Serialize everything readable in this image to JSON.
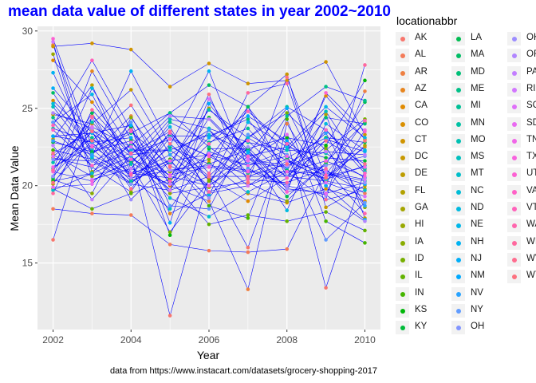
{
  "chart_data": {
    "type": "line",
    "title": "mean data value of different states in year 2002~2010",
    "title_color": "#0000ff",
    "xlabel": "Year",
    "ylabel": "Mean Data Value",
    "caption": "data from https://www.instacart.com/datasets/grocery-shopping-2017",
    "x": [
      2002,
      2003,
      2004,
      2005,
      2006,
      2007,
      2008,
      2009,
      2010
    ],
    "x_ticks": [
      "2002",
      "2004",
      "2006",
      "2008",
      "2010"
    ],
    "y_ticks": [
      "15",
      "20",
      "25",
      "30"
    ],
    "xlim": [
      2001.6,
      2010.4
    ],
    "ylim": [
      10.7,
      30.3
    ],
    "line_color": "#0000ff",
    "panel_background": "#ebebeb",
    "grid": true,
    "legend_title": "locationabbr",
    "legend_position": "right",
    "series": [
      {
        "name": "AK",
        "values": [
          16.5,
          24.5,
          22.0,
          11.6,
          20.6,
          16.0,
          23.0,
          13.4,
          21.0
        ]
      },
      {
        "name": "AL",
        "values": [
          18.5,
          18.2,
          18.1,
          16.2,
          15.8,
          15.7,
          15.9,
          21.0,
          19.5
        ]
      },
      {
        "name": "AR",
        "values": [
          29.1,
          22.0,
          24.5,
          20.0,
          19.0,
          13.3,
          24.0,
          20.0,
          26.1
        ]
      },
      {
        "name": "AZ",
        "values": [
          21.0,
          27.4,
          23.0,
          18.2,
          19.5,
          20.0,
          21.0,
          20.5,
          22.5
        ]
      },
      {
        "name": "CA",
        "values": [
          28.1,
          25.4,
          22.0,
          22.3,
          20.5,
          19.0,
          20.5,
          25.8,
          23.0
        ]
      },
      {
        "name": "CO",
        "values": [
          25.5,
          23.0,
          21.5,
          20.0,
          21.5,
          19.5,
          18.9,
          19.8,
          19.0
        ]
      },
      {
        "name": "CT",
        "values": [
          29.0,
          29.2,
          28.8,
          26.4,
          27.9,
          26.6,
          26.8,
          28.0,
          23.3
        ]
      },
      {
        "name": "DC",
        "values": [
          24.6,
          24.0,
          26.2,
          22.0,
          20.0,
          25.1,
          27.2,
          18.6,
          20.0
        ]
      },
      {
        "name": "DE",
        "values": [
          23.0,
          26.5,
          20.8,
          20.5,
          25.0,
          22.3,
          19.8,
          24.6,
          17.9
        ]
      },
      {
        "name": "FL",
        "values": [
          20.1,
          23.6,
          21.9,
          19.7,
          23.6,
          20.8,
          21.7,
          20.3,
          22.6
        ]
      },
      {
        "name": "GA",
        "values": [
          21.8,
          21.2,
          19.6,
          23.5,
          20.3,
          22.1,
          20.6,
          20.3,
          19.8
        ]
      },
      {
        "name": "HI",
        "values": [
          28.5,
          20.9,
          22.6,
          19.5,
          19.9,
          20.2,
          19.0,
          21.5,
          24.1
        ]
      },
      {
        "name": "IA",
        "values": [
          20.4,
          19.5,
          24.4,
          20.9,
          21.7,
          25.1,
          20.6,
          22.5,
          18.6
        ]
      },
      {
        "name": "ID",
        "values": [
          22.0,
          20.6,
          21.4,
          17.0,
          20.3,
          23.1,
          24.7,
          22.3,
          24.3
        ]
      },
      {
        "name": "IL",
        "values": [
          19.8,
          18.5,
          19.5,
          20.4,
          17.5,
          18.1,
          17.7,
          18.3,
          17.1
        ]
      },
      {
        "name": "IN",
        "values": [
          22.3,
          21.7,
          20.2,
          21.7,
          18.7,
          17.9,
          24.3,
          17.7,
          16.3
        ]
      },
      {
        "name": "KS",
        "values": [
          20.3,
          20.8,
          23.8,
          16.8,
          22.4,
          22.4,
          23.1,
          22.6,
          26.8
        ]
      },
      {
        "name": "KY",
        "values": [
          22.8,
          22.2,
          22.9,
          20.2,
          24.4,
          21.9,
          22.5,
          21.8,
          21.6
        ]
      },
      {
        "name": "LA",
        "values": [
          20.5,
          24.7,
          20.4,
          22.5,
          21.4,
          22.3,
          19.3,
          21.4,
          25.4
        ]
      },
      {
        "name": "MA",
        "values": [
          26.0,
          22.1,
          23.4,
          24.7,
          26.5,
          25.1,
          21.8,
          23.1,
          22.8
        ]
      },
      {
        "name": "MD",
        "values": [
          23.2,
          23.4,
          21.6,
          23.2,
          23.2,
          24.3,
          21.0,
          24.4,
          24.0
        ]
      },
      {
        "name": "ME",
        "values": [
          24.4,
          21.6,
          22.6,
          24.7,
          22.5,
          20.8,
          24.5,
          26.4,
          25.5
        ]
      },
      {
        "name": "MI",
        "values": [
          21.1,
          23.1,
          20.7,
          24.1,
          22.8,
          23.7,
          20.9,
          20.8,
          20.3
        ]
      },
      {
        "name": "MN",
        "values": [
          23.7,
          22.8,
          20.3,
          21.5,
          24.9,
          23.1,
          25.1,
          23.6,
          21.1
        ]
      },
      {
        "name": "MO",
        "values": [
          21.5,
          24.1,
          21.4,
          24.3,
          23.7,
          22.8,
          22.3,
          22.1,
          20.5
        ]
      },
      {
        "name": "MS",
        "values": [
          25.1,
          21.8,
          20.5,
          18.5,
          22.2,
          21.3,
          22.3,
          24.8,
          20.9
        ]
      },
      {
        "name": "MT",
        "values": [
          19.7,
          20.8,
          21.9,
          19.2,
          18.0,
          19.6,
          20.9,
          19.1,
          19.7
        ]
      },
      {
        "name": "NC",
        "values": [
          25.3,
          22.4,
          20.1,
          19.7,
          20.6,
          23.1,
          21.6,
          20.4,
          21.3
        ]
      },
      {
        "name": "ND",
        "values": [
          20.6,
          26.3,
          22.3,
          22.3,
          23.3,
          22.2,
          18.4,
          24.0,
          22.3
        ]
      },
      {
        "name": "NE",
        "values": [
          24.1,
          25.9,
          21.1,
          23.8,
          19.4,
          24.1,
          22.5,
          25.1,
          23.1
        ]
      },
      {
        "name": "NH",
        "values": [
          27.3,
          21.9,
          27.4,
          22.6,
          27.4,
          21.1,
          20.1,
          23.0,
          22.2
        ]
      },
      {
        "name": "NJ",
        "values": [
          26.3,
          23.4,
          23.9,
          17.6,
          25.3,
          22.1,
          25.0,
          20.0,
          17.8
        ]
      },
      {
        "name": "NM",
        "values": [
          23.2,
          22.8,
          23.1,
          20.6,
          23.1,
          24.5,
          22.9,
          20.8,
          20.1
        ]
      },
      {
        "name": "NV",
        "values": [
          22.9,
          22.0,
          20.7,
          22.0,
          23.6,
          21.5,
          21.2,
          23.4,
          18.7
        ]
      },
      {
        "name": "NY",
        "values": [
          24.1,
          21.2,
          24.1,
          18.7,
          18.5,
          23.3,
          22.0,
          16.5,
          18.9
        ]
      },
      {
        "name": "OH",
        "values": [
          21.7,
          21.6,
          20.1,
          23.1,
          21.9,
          20.6,
          20.6,
          21.3,
          21.9
        ]
      },
      {
        "name": "OK",
        "values": [
          20.6,
          23.5,
          19.1,
          21.6,
          19.2,
          22.5,
          19.8,
          19.5,
          20.2
        ]
      },
      {
        "name": "OR",
        "values": [
          24.7,
          23.7,
          20.5,
          21.0,
          21.3,
          21.0,
          20.0,
          19.4,
          17.7
        ]
      },
      {
        "name": "PA",
        "values": [
          22.6,
          19.1,
          22.0,
          24.5,
          24.3,
          21.7,
          21.3,
          22.2,
          22.0
        ]
      },
      {
        "name": "RI",
        "values": [
          29.3,
          20.4,
          21.1,
          20.1,
          22.1,
          20.0,
          21.6,
          20.9,
          20.4
        ]
      },
      {
        "name": "SC",
        "values": [
          21.9,
          23.8,
          22.5,
          19.7,
          25.6,
          21.8,
          19.6,
          20.2,
          19.3
        ]
      },
      {
        "name": "SD",
        "values": [
          19.9,
          20.1,
          22.8,
          20.6,
          20.0,
          21.6,
          23.3,
          19.5,
          23.6
        ]
      },
      {
        "name": "TN",
        "values": [
          21.2,
          22.6,
          20.8,
          21.6,
          22.0,
          21.3,
          21.9,
          20.6,
          21.2
        ]
      },
      {
        "name": "TX",
        "values": [
          20.9,
          20.3,
          21.7,
          20.7,
          21.2,
          20.9,
          20.9,
          21.6,
          20.6
        ]
      },
      {
        "name": "UT",
        "values": [
          29.5,
          22.5,
          23.5,
          21.3,
          20.0,
          21.9,
          19.6,
          26.0,
          23.5
        ]
      },
      {
        "name": "VA",
        "values": [
          23.6,
          21.3,
          22.1,
          23.0,
          21.9,
          22.9,
          20.5,
          23.6,
          20.8
        ]
      },
      {
        "name": "VT",
        "values": [
          23.9,
          28.1,
          23.6,
          20.3,
          22.7,
          24.8,
          22.7,
          20.7,
          24.2
        ]
      },
      {
        "name": "WA",
        "values": [
          21.0,
          24.4,
          20.7,
          23.4,
          19.6,
          20.4,
          20.2,
          21.1,
          18.2
        ]
      },
      {
        "name": "WI",
        "values": [
          19.5,
          24.9,
          22.1,
          23.5,
          20.8,
          26.0,
          26.6,
          19.1,
          27.8
        ]
      },
      {
        "name": "WV",
        "values": [
          22.1,
          23.5,
          19.8,
          22.7,
          20.6,
          20.6,
          21.4,
          22.9,
          21.4
        ]
      },
      {
        "name": "WY",
        "values": [
          20.2,
          22.9,
          25.2,
          21.2,
          25.9,
          20.2,
          27.0,
          20.5,
          22.9
        ]
      }
    ]
  }
}
